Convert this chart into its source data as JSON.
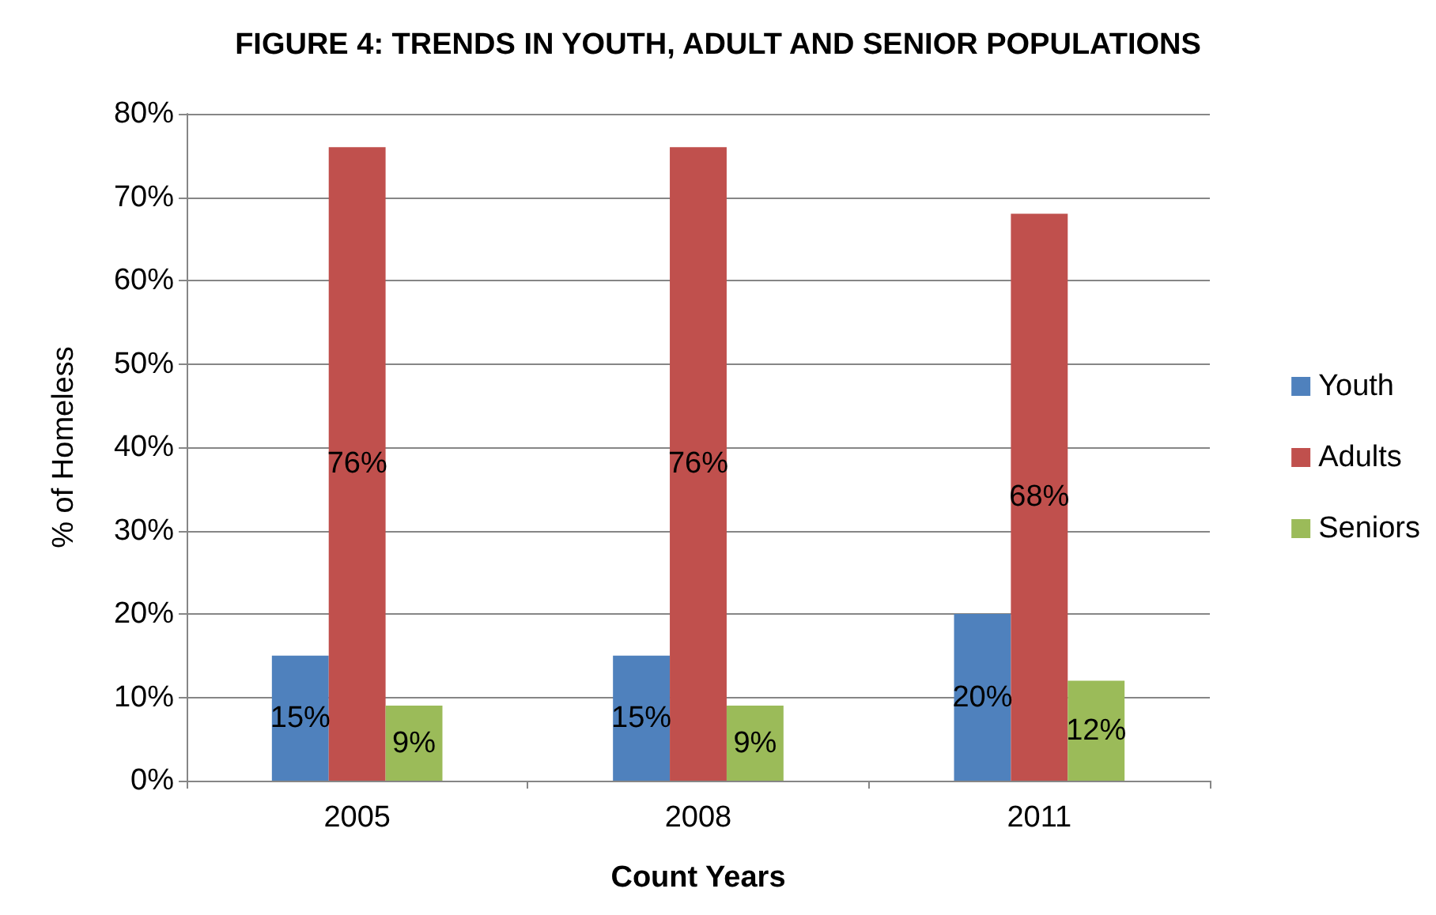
{
  "chart_data": {
    "type": "bar",
    "title": "FIGURE 4: TRENDS IN YOUTH, ADULT AND SENIOR POPULATIONS",
    "xlabel": "Count Years",
    "ylabel": "% of Homeless",
    "categories": [
      "2005",
      "2008",
      "2011"
    ],
    "series": [
      {
        "name": "Youth",
        "color": "#4f81bd",
        "values": [
          15,
          15,
          20
        ],
        "value_labels": [
          "15%",
          "15%",
          "20%"
        ]
      },
      {
        "name": "Adults",
        "color": "#c0504d",
        "values": [
          76,
          76,
          68
        ],
        "value_labels": [
          "76%",
          "76%",
          "68%"
        ]
      },
      {
        "name": "Seniors",
        "color": "#9bbb59",
        "values": [
          9,
          9,
          12
        ],
        "value_labels": [
          "9%",
          "9%",
          "12%"
        ]
      }
    ],
    "ylim": [
      0,
      80
    ],
    "yticks": [
      {
        "value": 0,
        "label": "0%"
      },
      {
        "value": 10,
        "label": "10%"
      },
      {
        "value": 20,
        "label": "20%"
      },
      {
        "value": 30,
        "label": "30%"
      },
      {
        "value": 40,
        "label": "40%"
      },
      {
        "value": 50,
        "label": "50%"
      },
      {
        "value": 60,
        "label": "60%"
      },
      {
        "value": 70,
        "label": "70%"
      },
      {
        "value": 80,
        "label": "80%"
      }
    ],
    "grid": "y",
    "legend": "right"
  }
}
